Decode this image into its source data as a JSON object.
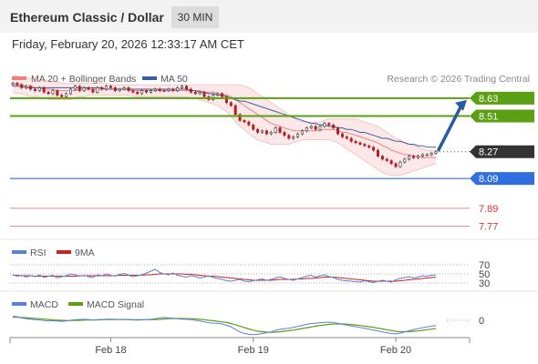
{
  "header": {
    "title": "Ethereum Classic / Dollar",
    "timeframe": "30 MIN",
    "datetime": "Friday, February 20, 2026 12:33:17 AM CET"
  },
  "credit": "Research © 2026 Trading Central",
  "colors": {
    "bollinger": "#f08080",
    "ma50": "#3a5fa0",
    "resistance": "#5aa012",
    "pivot": "#2f6fe0",
    "support": "#e03030",
    "candle_up": "#333333",
    "candle_down": "#b02020",
    "rsi": "#5a7fd8",
    "rsi_ma": "#d02020",
    "macd": "#5a7fd8",
    "macd_signal": "#5aa012",
    "arrow": "#2a5aa0"
  },
  "chart_data": [
    {
      "type": "candlestick",
      "legend": [
        "MA 20 + Bollinger Bands",
        "MA 50"
      ],
      "x_ticks": [
        "Feb 18",
        "Feb 19",
        "Feb 20"
      ],
      "ylim": [
        7.7,
        8.8
      ],
      "last_price": 8.27,
      "levels": [
        {
          "value": 8.63,
          "label": "8.63",
          "kind": "resistance"
        },
        {
          "value": 8.51,
          "label": "8.51",
          "kind": "resistance"
        },
        {
          "value": 8.27,
          "label": "8.27",
          "kind": "last"
        },
        {
          "value": 8.09,
          "label": "8.09",
          "kind": "pivot"
        },
        {
          "value": 7.89,
          "label": "7.89",
          "kind": "support"
        },
        {
          "value": 7.77,
          "label": "7.77",
          "kind": "support"
        }
      ],
      "close": [
        8.73,
        8.72,
        8.7,
        8.71,
        8.69,
        8.68,
        8.7,
        8.67,
        8.66,
        8.68,
        8.65,
        8.64,
        8.66,
        8.69,
        8.71,
        8.68,
        8.7,
        8.69,
        8.67,
        8.7,
        8.69,
        8.71,
        8.7,
        8.68,
        8.69,
        8.7,
        8.68,
        8.67,
        8.66,
        8.68,
        8.67,
        8.68,
        8.69,
        8.68,
        8.68,
        8.69,
        8.68,
        8.7,
        8.71,
        8.69,
        8.67,
        8.66,
        8.67,
        8.64,
        8.62,
        8.65,
        8.66,
        8.64,
        8.6,
        8.58,
        8.52,
        8.48,
        8.47,
        8.45,
        8.42,
        8.4,
        8.41,
        8.39,
        8.4,
        8.43,
        8.4,
        8.38,
        8.36,
        8.37,
        8.39,
        8.41,
        8.43,
        8.44,
        8.42,
        8.44,
        8.46,
        8.45,
        8.43,
        8.39,
        8.37,
        8.36,
        8.34,
        8.33,
        8.32,
        8.31,
        8.3,
        8.28,
        8.24,
        8.22,
        8.21,
        8.19,
        8.17,
        8.2,
        8.22,
        8.24,
        8.23,
        8.24,
        8.25,
        8.25,
        8.26,
        8.27
      ],
      "open": [
        8.72,
        8.73,
        8.72,
        8.7,
        8.71,
        8.69,
        8.68,
        8.7,
        8.67,
        8.66,
        8.68,
        8.65,
        8.64,
        8.66,
        8.69,
        8.71,
        8.68,
        8.7,
        8.69,
        8.67,
        8.7,
        8.69,
        8.71,
        8.7,
        8.68,
        8.69,
        8.7,
        8.68,
        8.67,
        8.66,
        8.68,
        8.67,
        8.68,
        8.69,
        8.68,
        8.68,
        8.69,
        8.68,
        8.7,
        8.71,
        8.69,
        8.67,
        8.66,
        8.67,
        8.64,
        8.62,
        8.65,
        8.66,
        8.64,
        8.6,
        8.58,
        8.52,
        8.48,
        8.47,
        8.45,
        8.42,
        8.4,
        8.41,
        8.39,
        8.4,
        8.43,
        8.4,
        8.38,
        8.36,
        8.37,
        8.39,
        8.41,
        8.43,
        8.44,
        8.42,
        8.44,
        8.46,
        8.45,
        8.43,
        8.39,
        8.37,
        8.36,
        8.34,
        8.33,
        8.32,
        8.31,
        8.3,
        8.28,
        8.24,
        8.22,
        8.21,
        8.19,
        8.17,
        8.2,
        8.22,
        8.24,
        8.23,
        8.24,
        8.25,
        8.25,
        8.26
      ],
      "ma20": [
        8.73,
        8.72,
        8.72,
        8.71,
        8.71,
        8.7,
        8.7,
        8.69,
        8.69,
        8.69,
        8.68,
        8.68,
        8.68,
        8.68,
        8.68,
        8.69,
        8.69,
        8.69,
        8.69,
        8.69,
        8.69,
        8.69,
        8.69,
        8.69,
        8.69,
        8.69,
        8.69,
        8.68,
        8.68,
        8.68,
        8.68,
        8.68,
        8.68,
        8.68,
        8.68,
        8.68,
        8.68,
        8.68,
        8.68,
        8.68,
        8.68,
        8.68,
        8.68,
        8.67,
        8.67,
        8.67,
        8.66,
        8.66,
        8.65,
        8.64,
        8.62,
        8.6,
        8.58,
        8.56,
        8.54,
        8.52,
        8.5,
        8.48,
        8.46,
        8.45,
        8.44,
        8.43,
        8.42,
        8.41,
        8.41,
        8.41,
        8.41,
        8.41,
        8.41,
        8.41,
        8.42,
        8.42,
        8.42,
        8.41,
        8.4,
        8.4,
        8.39,
        8.38,
        8.37,
        8.36,
        8.35,
        8.34,
        8.33,
        8.31,
        8.3,
        8.28,
        8.27,
        8.26,
        8.25,
        8.25,
        8.24,
        8.24,
        8.23,
        8.23,
        8.23,
        8.23
      ],
      "bb_upper": [
        8.78,
        8.78,
        8.77,
        8.77,
        8.76,
        8.76,
        8.75,
        8.75,
        8.75,
        8.74,
        8.74,
        8.73,
        8.73,
        8.73,
        8.73,
        8.73,
        8.73,
        8.73,
        8.73,
        8.73,
        8.73,
        8.73,
        8.72,
        8.72,
        8.72,
        8.72,
        8.72,
        8.72,
        8.72,
        8.72,
        8.72,
        8.72,
        8.72,
        8.72,
        8.72,
        8.72,
        8.72,
        8.72,
        8.72,
        8.72,
        8.72,
        8.72,
        8.72,
        8.72,
        8.72,
        8.72,
        8.72,
        8.72,
        8.72,
        8.72,
        8.72,
        8.72,
        8.71,
        8.7,
        8.68,
        8.66,
        8.64,
        8.62,
        8.6,
        8.58,
        8.56,
        8.54,
        8.52,
        8.5,
        8.48,
        8.47,
        8.47,
        8.47,
        8.47,
        8.47,
        8.48,
        8.49,
        8.49,
        8.49,
        8.49,
        8.49,
        8.49,
        8.49,
        8.48,
        8.47,
        8.46,
        8.45,
        8.44,
        8.42,
        8.4,
        8.38,
        8.36,
        8.35,
        8.33,
        8.32,
        8.31,
        8.3,
        8.29,
        8.28,
        8.28,
        8.28
      ],
      "bb_lower": [
        8.67,
        8.66,
        8.66,
        8.65,
        8.64,
        8.64,
        8.63,
        8.63,
        8.62,
        8.62,
        8.62,
        8.62,
        8.62,
        8.62,
        8.63,
        8.64,
        8.64,
        8.65,
        8.65,
        8.65,
        8.65,
        8.65,
        8.65,
        8.65,
        8.65,
        8.65,
        8.65,
        8.64,
        8.64,
        8.64,
        8.64,
        8.64,
        8.64,
        8.64,
        8.64,
        8.64,
        8.64,
        8.64,
        8.64,
        8.64,
        8.63,
        8.63,
        8.62,
        8.61,
        8.6,
        8.59,
        8.58,
        8.56,
        8.54,
        8.51,
        8.47,
        8.44,
        8.42,
        8.39,
        8.37,
        8.35,
        8.34,
        8.33,
        8.32,
        8.32,
        8.32,
        8.32,
        8.32,
        8.33,
        8.34,
        8.35,
        8.35,
        8.35,
        8.35,
        8.35,
        8.35,
        8.35,
        8.34,
        8.33,
        8.31,
        8.29,
        8.27,
        8.25,
        8.23,
        8.21,
        8.19,
        8.17,
        8.15,
        8.13,
        8.12,
        8.11,
        8.11,
        8.11,
        8.12,
        8.13,
        8.14,
        8.15,
        8.16,
        8.17,
        8.18,
        8.19
      ],
      "ma50": [
        8.71,
        8.71,
        8.71,
        8.7,
        8.7,
        8.7,
        8.7,
        8.7,
        8.7,
        8.7,
        8.7,
        8.7,
        8.7,
        8.7,
        8.7,
        8.7,
        8.7,
        8.7,
        8.7,
        8.7,
        8.7,
        8.69,
        8.69,
        8.69,
        8.69,
        8.69,
        8.69,
        8.69,
        8.69,
        8.69,
        8.69,
        8.69,
        8.69,
        8.69,
        8.69,
        8.69,
        8.69,
        8.69,
        8.69,
        8.69,
        8.68,
        8.68,
        8.67,
        8.67,
        8.66,
        8.66,
        8.65,
        8.65,
        8.64,
        8.63,
        8.62,
        8.61,
        8.61,
        8.6,
        8.59,
        8.58,
        8.57,
        8.56,
        8.55,
        8.54,
        8.53,
        8.52,
        8.51,
        8.5,
        8.49,
        8.48,
        8.47,
        8.46,
        8.46,
        8.45,
        8.45,
        8.44,
        8.44,
        8.43,
        8.43,
        8.42,
        8.42,
        8.41,
        8.4,
        8.4,
        8.39,
        8.38,
        8.37,
        8.36,
        8.36,
        8.35,
        8.34,
        8.34,
        8.33,
        8.32,
        8.32,
        8.31,
        8.31,
        8.3,
        8.3,
        8.3
      ]
    },
    {
      "type": "line",
      "legend": [
        "RSI",
        "9MA"
      ],
      "y_ticks": [
        "70",
        "50",
        "30"
      ],
      "ylim": [
        0,
        100
      ],
      "rsi": [
        48,
        45,
        47,
        43,
        46,
        44,
        48,
        42,
        45,
        47,
        41,
        44,
        46,
        50,
        48,
        45,
        47,
        44,
        42,
        48,
        46,
        50,
        47,
        45,
        49,
        51,
        47,
        44,
        46,
        48,
        52,
        56,
        60,
        53,
        50,
        48,
        52,
        47,
        45,
        43,
        46,
        44,
        41,
        43,
        46,
        42,
        40,
        38,
        35,
        34,
        36,
        38,
        34,
        33,
        35,
        37,
        39,
        36,
        38,
        41,
        44,
        40,
        38,
        36,
        39,
        42,
        45,
        47,
        43,
        46,
        48,
        44,
        42,
        38,
        36,
        35,
        34,
        33,
        32,
        35,
        33,
        31,
        34,
        36,
        34,
        32,
        37,
        40,
        42,
        44,
        41,
        43,
        46,
        45,
        47,
        48
      ],
      "ma9": [
        47,
        47,
        46,
        46,
        46,
        45,
        45,
        45,
        45,
        45,
        45,
        45,
        45,
        45,
        45,
        46,
        46,
        46,
        46,
        46,
        46,
        46,
        46,
        46,
        47,
        47,
        47,
        47,
        47,
        47,
        48,
        48,
        49,
        50,
        50,
        50,
        50,
        50,
        50,
        49,
        49,
        48,
        47,
        46,
        45,
        45,
        44,
        43,
        42,
        41,
        40,
        39,
        38,
        37,
        36,
        36,
        36,
        36,
        36,
        37,
        38,
        38,
        38,
        38,
        39,
        39,
        40,
        40,
        41,
        42,
        43,
        43,
        43,
        42,
        41,
        40,
        39,
        38,
        37,
        36,
        35,
        34,
        34,
        34,
        34,
        34,
        34,
        35,
        36,
        37,
        38,
        39,
        40,
        41,
        42,
        43
      ]
    },
    {
      "type": "line",
      "legend": [
        "MACD",
        "MACD Signal"
      ],
      "y_ticks": [
        "0"
      ],
      "macd": [
        0.02,
        0.018,
        0.012,
        0.008,
        0.005,
        0.003,
        0.002,
        -0.001,
        -0.003,
        -0.002,
        -0.004,
        -0.005,
        -0.003,
        0.0,
        0.003,
        0.004,
        0.005,
        0.004,
        0.002,
        0.003,
        0.004,
        0.005,
        0.006,
        0.005,
        0.004,
        0.004,
        0.003,
        0.002,
        0.001,
        0.002,
        0.003,
        0.005,
        0.008,
        0.012,
        0.015,
        0.012,
        0.01,
        0.008,
        0.006,
        0.005,
        0.003,
        0.0,
        -0.003,
        -0.008,
        -0.012,
        -0.014,
        -0.015,
        -0.018,
        -0.025,
        -0.032,
        -0.045,
        -0.058,
        -0.065,
        -0.07,
        -0.072,
        -0.07,
        -0.066,
        -0.062,
        -0.058,
        -0.05,
        -0.045,
        -0.042,
        -0.04,
        -0.035,
        -0.03,
        -0.025,
        -0.02,
        -0.016,
        -0.014,
        -0.012,
        -0.01,
        -0.009,
        -0.01,
        -0.015,
        -0.02,
        -0.024,
        -0.028,
        -0.032,
        -0.036,
        -0.04,
        -0.044,
        -0.048,
        -0.053,
        -0.058,
        -0.062,
        -0.066,
        -0.068,
        -0.064,
        -0.058,
        -0.052,
        -0.047,
        -0.042,
        -0.037,
        -0.033,
        -0.029,
        -0.026
      ],
      "signal": [
        0.015,
        0.015,
        0.014,
        0.013,
        0.011,
        0.009,
        0.008,
        0.006,
        0.004,
        0.002,
        0.001,
        0.0,
        -0.001,
        -0.001,
        -0.001,
        0.0,
        0.001,
        0.002,
        0.002,
        0.002,
        0.003,
        0.003,
        0.004,
        0.004,
        0.004,
        0.004,
        0.004,
        0.003,
        0.003,
        0.003,
        0.003,
        0.003,
        0.004,
        0.005,
        0.007,
        0.008,
        0.009,
        0.009,
        0.009,
        0.008,
        0.008,
        0.007,
        0.005,
        0.003,
        0.0,
        -0.002,
        -0.005,
        -0.008,
        -0.011,
        -0.016,
        -0.022,
        -0.029,
        -0.036,
        -0.043,
        -0.049,
        -0.054,
        -0.057,
        -0.059,
        -0.06,
        -0.059,
        -0.057,
        -0.054,
        -0.052,
        -0.049,
        -0.045,
        -0.041,
        -0.037,
        -0.033,
        -0.029,
        -0.026,
        -0.023,
        -0.02,
        -0.018,
        -0.018,
        -0.018,
        -0.019,
        -0.021,
        -0.023,
        -0.026,
        -0.029,
        -0.032,
        -0.035,
        -0.039,
        -0.043,
        -0.047,
        -0.051,
        -0.055,
        -0.057,
        -0.057,
        -0.057,
        -0.055,
        -0.053,
        -0.05,
        -0.047,
        -0.044,
        -0.041
      ]
    }
  ]
}
